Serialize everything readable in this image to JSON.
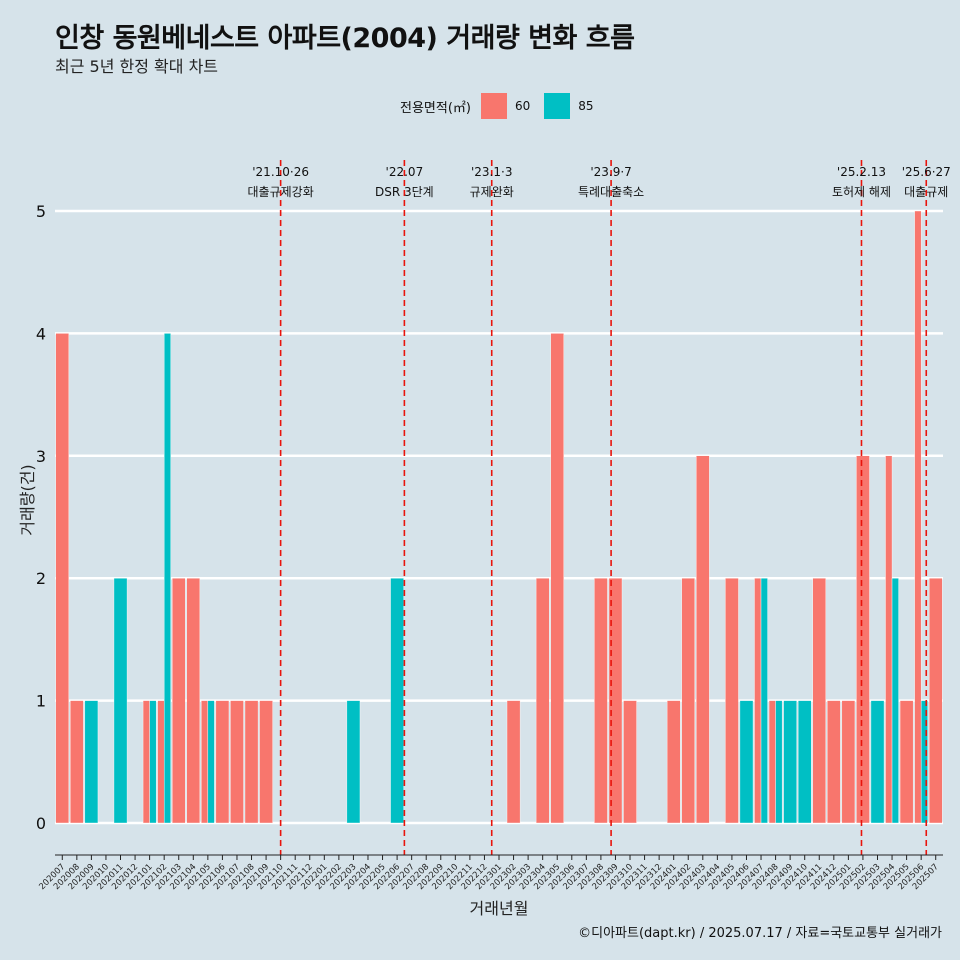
{
  "title": "인창 동원베네스트 아파트(2004) 거래량 변화 흐름",
  "subtitle": "최근 5년 한정 확대 차트",
  "legend": {
    "title": "전용면적(㎡)",
    "items": [
      {
        "label": "60",
        "color": "#f8766d"
      },
      {
        "label": "85",
        "color": "#00bfc4"
      }
    ]
  },
  "caption": "©디아파트(dapt.kr) / 2025.07.17 / 자료=국토교통부 실거래가",
  "chart_data": {
    "type": "bar",
    "title": "인창 동원베네스트 아파트(2004) 거래량 변화 흐름",
    "xlabel": "거래년월",
    "ylabel": "거래량(건)",
    "ylim": [
      0,
      5
    ],
    "yticks": [
      0,
      1,
      2,
      3,
      4,
      5
    ],
    "categories": [
      "202007",
      "202008",
      "202009",
      "202010",
      "202011",
      "202012",
      "202101",
      "202102",
      "202103",
      "202104",
      "202105",
      "202106",
      "202107",
      "202108",
      "202109",
      "202110",
      "202111",
      "202112",
      "202201",
      "202202",
      "202203",
      "202204",
      "202205",
      "202206",
      "202207",
      "202208",
      "202209",
      "202210",
      "202211",
      "202212",
      "202301",
      "202302",
      "202303",
      "202304",
      "202305",
      "202306",
      "202307",
      "202308",
      "202309",
      "202310",
      "202311",
      "202312",
      "202401",
      "202402",
      "202403",
      "202404",
      "202405",
      "202406",
      "202407",
      "202408",
      "202409",
      "202410",
      "202411",
      "202412",
      "202501",
      "202502",
      "202503",
      "202504",
      "202505",
      "202506",
      "202507"
    ],
    "series": [
      {
        "name": "60",
        "color": "#f8766d",
        "values": [
          4,
          1,
          0,
          0,
          0,
          0,
          1,
          1,
          2,
          2,
          1,
          1,
          1,
          1,
          1,
          0,
          0,
          0,
          0,
          0,
          0,
          0,
          0,
          0,
          0,
          0,
          0,
          0,
          0,
          0,
          0,
          1,
          0,
          2,
          4,
          0,
          0,
          2,
          2,
          1,
          0,
          0,
          1,
          2,
          3,
          0,
          2,
          0,
          2,
          1,
          0,
          0,
          2,
          1,
          1,
          3,
          0,
          3,
          1,
          5,
          2
        ]
      },
      {
        "name": "85",
        "color": "#00bfc4",
        "values": [
          0,
          0,
          1,
          0,
          2,
          0,
          1,
          4,
          0,
          0,
          1,
          0,
          0,
          0,
          0,
          0,
          0,
          0,
          0,
          0,
          1,
          0,
          0,
          2,
          0,
          0,
          0,
          0,
          0,
          0,
          0,
          0,
          0,
          0,
          0,
          0,
          0,
          0,
          0,
          0,
          0,
          0,
          0,
          0,
          0,
          0,
          0,
          1,
          2,
          1,
          1,
          1,
          0,
          0,
          0,
          0,
          1,
          2,
          0,
          1,
          0
        ]
      }
    ],
    "events": [
      {
        "date": "'21.10·26",
        "label": "대출규제강화",
        "month": "202110",
        "offset": 0.5
      },
      {
        "date": "'22.07",
        "label": "DSR 3단계",
        "month": "202207",
        "offset": 0.0
      },
      {
        "date": "'23.1·3",
        "label": "규제완화",
        "month": "202301",
        "offset": 0.0
      },
      {
        "date": "'23.9·7",
        "label": "특례대출축소",
        "month": "202309",
        "offset": 0.2
      },
      {
        "date": "'25.2.13",
        "label": "토허제 해제",
        "month": "202502",
        "offset": 0.4
      },
      {
        "date": "'25.6·27",
        "label": "대출규제",
        "month": "202506",
        "offset": 0.85
      }
    ]
  }
}
